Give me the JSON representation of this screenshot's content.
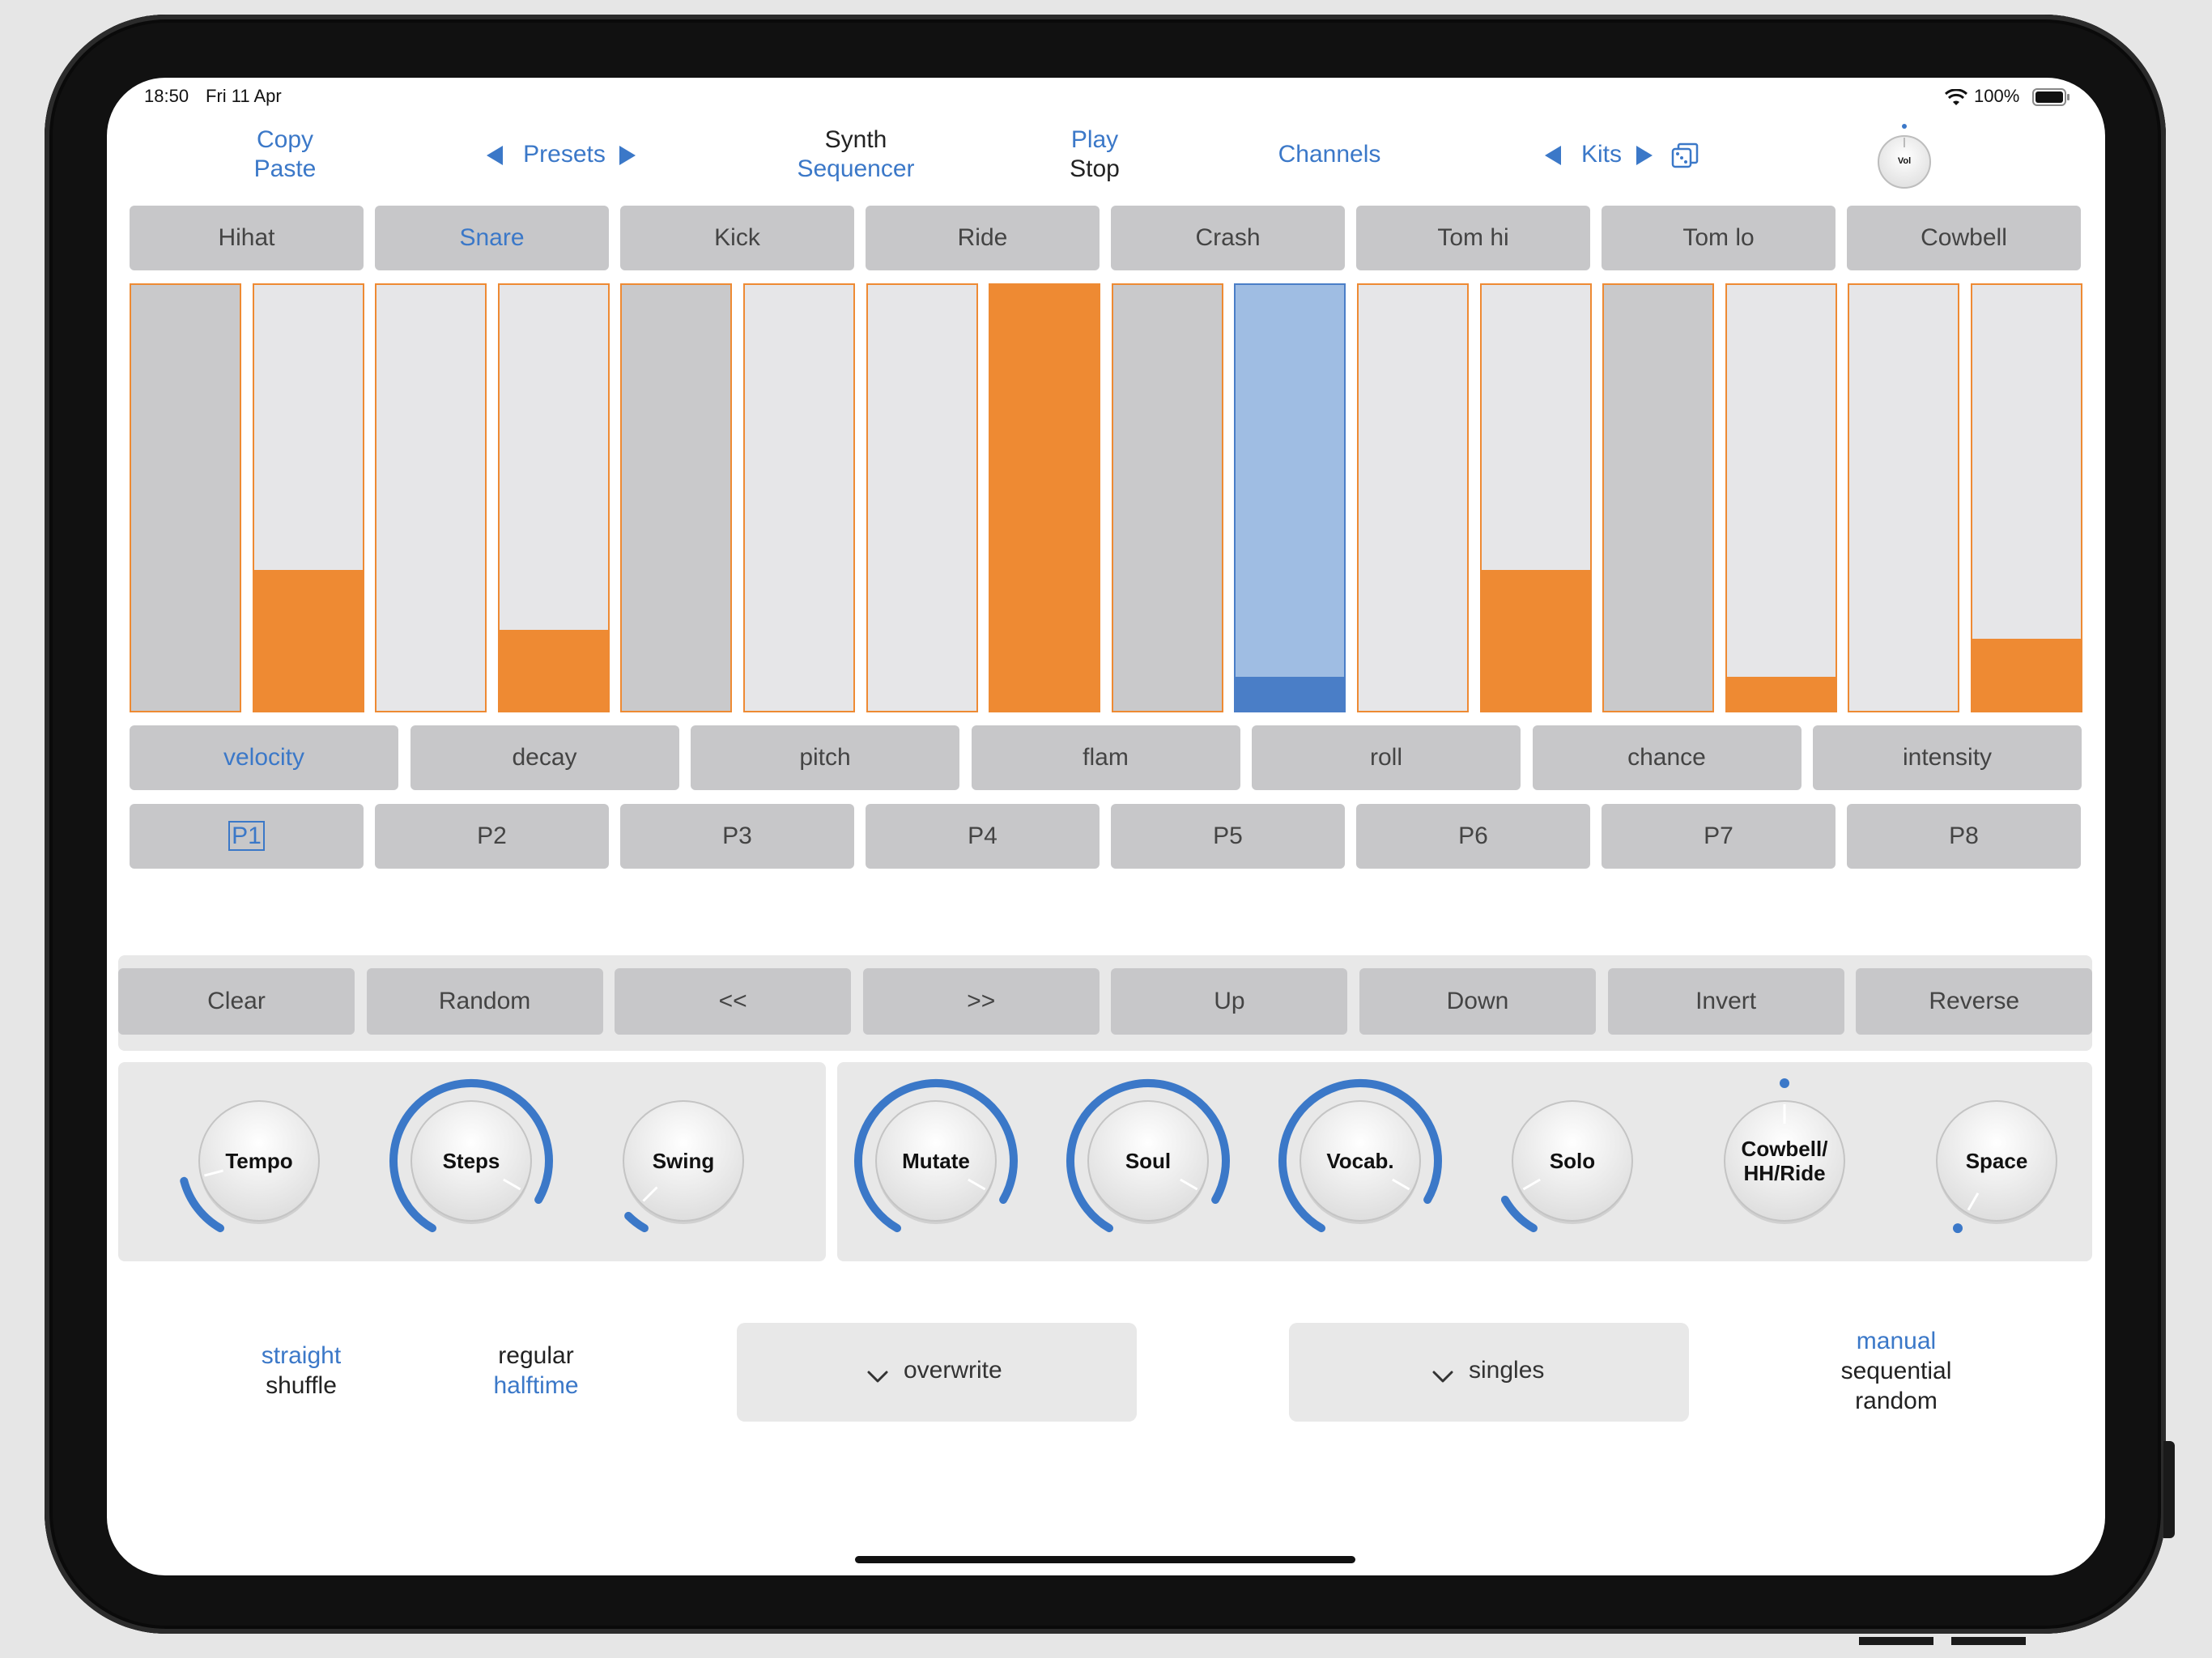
{
  "status_bar": {
    "time": "18:50",
    "date": "Fri 11 Apr",
    "battery": "100%"
  },
  "top_nav": {
    "copy": "Copy",
    "paste": "Paste",
    "presets": "Presets",
    "synth": "Synth",
    "sequencer": "Sequencer",
    "play": "Play",
    "stop": "Stop",
    "channels": "Channels",
    "kits": "Kits",
    "vol_label": "Vol"
  },
  "instruments": [
    {
      "label": "Hihat",
      "selected": false
    },
    {
      "label": "Snare",
      "selected": true
    },
    {
      "label": "Kick",
      "selected": false
    },
    {
      "label": "Ride",
      "selected": false
    },
    {
      "label": "Crash",
      "selected": false
    },
    {
      "label": "Tom hi",
      "selected": false
    },
    {
      "label": "Tom lo",
      "selected": false
    },
    {
      "label": "Cowbell",
      "selected": false
    }
  ],
  "steps": [
    {
      "level": 0,
      "state": "off"
    },
    {
      "level": 0.33,
      "state": "on"
    },
    {
      "level": 0,
      "state": "on"
    },
    {
      "level": 0.19,
      "state": "on"
    },
    {
      "level": 0,
      "state": "off"
    },
    {
      "level": 0,
      "state": "on"
    },
    {
      "level": 0,
      "state": "on"
    },
    {
      "level": 1.0,
      "state": "on"
    },
    {
      "level": 0,
      "state": "off"
    },
    {
      "level": 0.08,
      "state": "current"
    },
    {
      "level": 0,
      "state": "on"
    },
    {
      "level": 0.33,
      "state": "on"
    },
    {
      "level": 0,
      "state": "off"
    },
    {
      "level": 0.08,
      "state": "on"
    },
    {
      "level": 0,
      "state": "on"
    },
    {
      "level": 0.17,
      "state": "on"
    }
  ],
  "parameters": [
    {
      "label": "velocity",
      "selected": true
    },
    {
      "label": "decay",
      "selected": false
    },
    {
      "label": "pitch",
      "selected": false
    },
    {
      "label": "flam",
      "selected": false
    },
    {
      "label": "roll",
      "selected": false
    },
    {
      "label": "chance",
      "selected": false
    },
    {
      "label": "intensity",
      "selected": false
    }
  ],
  "patterns": [
    {
      "label": "P1",
      "selected": true
    },
    {
      "label": "P2",
      "selected": false
    },
    {
      "label": "P3",
      "selected": false
    },
    {
      "label": "P4",
      "selected": false
    },
    {
      "label": "P5",
      "selected": false
    },
    {
      "label": "P6",
      "selected": false
    },
    {
      "label": "P7",
      "selected": false
    },
    {
      "label": "P8",
      "selected": false
    }
  ],
  "actions": [
    "Clear",
    "Random",
    "<<",
    ">>",
    "Up",
    "Down",
    "Invert",
    "Reverse"
  ],
  "knobs_left": [
    {
      "label": "Tempo",
      "value": 0.15
    },
    {
      "label": "Steps",
      "value": 0.9
    },
    {
      "label": "Swing",
      "value": 0.05
    }
  ],
  "knobs_right": [
    {
      "label": "Mutate",
      "value": 0.9
    },
    {
      "label": "Soul",
      "value": 0.9
    },
    {
      "label": "Vocab.",
      "value": 0.9
    },
    {
      "label": "Solo",
      "value": 0.1
    },
    {
      "label": "Cowbell/\nHH/Ride",
      "value": 0.5
    },
    {
      "label": "Space",
      "value": 0.0
    }
  ],
  "groove_options": {
    "straight": "straight",
    "shuffle": "shuffle"
  },
  "time_options": {
    "regular": "regular",
    "halftime": "halftime"
  },
  "mode_dropdown": "overwrite",
  "trigger_dropdown": "singles",
  "order_options": {
    "manual": "manual",
    "sequential": "sequential",
    "random": "random"
  },
  "colors": {
    "accent": "#3b78c8",
    "orange": "#ee8a33",
    "current_blue": "#9fbde3",
    "current_fill": "#4a7ec7",
    "button_gray": "#c7c7c9",
    "step_off": "#c9c9cb",
    "step_on": "#e6e6e8"
  }
}
